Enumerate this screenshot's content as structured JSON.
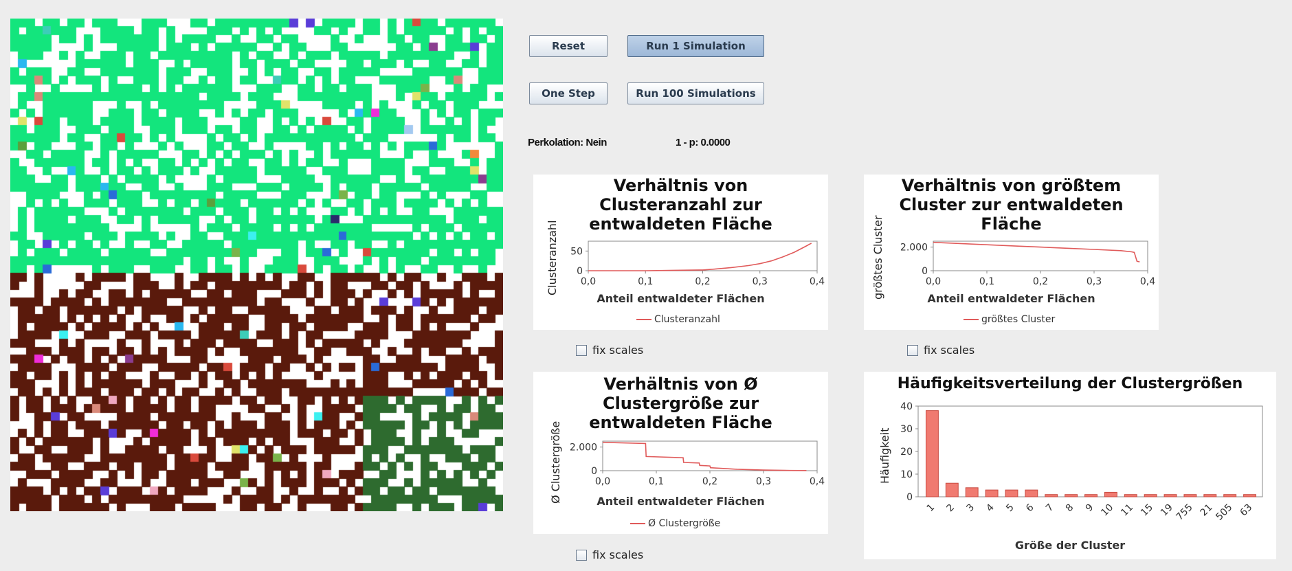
{
  "controls": {
    "reset_label": "Reset",
    "run1_label": "Run 1 Simulation",
    "onestep_label": "One Step",
    "run100_label": "Run 100 Simulations"
  },
  "status": {
    "percolation": "Perkolation: Nein",
    "one_minus_p": "1 - p: 0.0000"
  },
  "checkbox_label": "fix scales",
  "colors": {
    "forest_green": "#13e57d",
    "burnt_brown": "#5a1a0c",
    "dark_green": "#2e6b2f",
    "series_red": "#e05a5a",
    "bar_fill": "#f07a70",
    "button_pressed": "#a9c2e0"
  },
  "chart_data": [
    {
      "type": "line",
      "title": [
        "Verhältnis von",
        "Clusteranzahl zur",
        "entwaldeten Fläche"
      ],
      "xlabel": "Anteil entwaldeter Flächen",
      "ylabel": "Clusteranzahl",
      "xlim": [
        0,
        0.4
      ],
      "ylim": [
        0,
        75
      ],
      "xticks": [
        "0,0",
        "0,1",
        "0,2",
        "0,3",
        "0,4"
      ],
      "yticks": [
        "0",
        "50"
      ],
      "ytick_values": [
        0,
        50
      ],
      "series": [
        {
          "name": "Clusteranzahl",
          "x": [
            0.0,
            0.05,
            0.1,
            0.15,
            0.2,
            0.22,
            0.25,
            0.28,
            0.3,
            0.32,
            0.34,
            0.36,
            0.38,
            0.39
          ],
          "y": [
            0,
            0,
            0,
            1,
            2,
            4,
            8,
            13,
            18,
            25,
            35,
            47,
            62,
            70
          ]
        }
      ]
    },
    {
      "type": "line",
      "title": [
        "Verhältnis von größtem",
        "Cluster zur entwaldeten",
        "Fläche"
      ],
      "xlabel": "Anteil entwaldeter Flächen",
      "ylabel": "größtes Cluster",
      "xlim": [
        0,
        0.4
      ],
      "ylim": [
        0,
        2500
      ],
      "xticks": [
        "0,0",
        "0,1",
        "0,2",
        "0,3",
        "0,4"
      ],
      "yticks": [
        "0",
        "2.000"
      ],
      "ytick_values": [
        0,
        2000
      ],
      "series": [
        {
          "name": "größtes Cluster",
          "x": [
            0.0,
            0.05,
            0.1,
            0.15,
            0.2,
            0.25,
            0.3,
            0.35,
            0.37,
            0.375,
            0.38,
            0.385
          ],
          "y": [
            2400,
            2300,
            2200,
            2100,
            2000,
            1900,
            1800,
            1700,
            1600,
            1550,
            800,
            750
          ]
        }
      ]
    },
    {
      "type": "line",
      "title": [
        "Verhältnis von Ø",
        "Clustergröße zur",
        "entwaldeten Fläche"
      ],
      "xlabel": "Anteil entwaldeter Flächen",
      "ylabel": "Ø Clustergröße",
      "xlim": [
        0,
        0.4
      ],
      "ylim": [
        0,
        2500
      ],
      "xticks": [
        "0,0",
        "0,1",
        "0,2",
        "0,3",
        "0,4"
      ],
      "yticks": [
        "0",
        "2.000"
      ],
      "ytick_values": [
        0,
        2000
      ],
      "series": [
        {
          "name": "Ø Clustergröße",
          "x": [
            0.0,
            0.08,
            0.081,
            0.15,
            0.151,
            0.18,
            0.181,
            0.2,
            0.201,
            0.25,
            0.3,
            0.35,
            0.38
          ],
          "y": [
            2400,
            2300,
            1200,
            1100,
            700,
            650,
            450,
            400,
            250,
            120,
            50,
            20,
            10
          ]
        }
      ]
    },
    {
      "type": "bar",
      "title": "Häufigkeitsverteilung der Clustergrößen",
      "xlabel": "Größe der Cluster",
      "ylabel": "Häufigkeit",
      "ylim": [
        0,
        40
      ],
      "yticks": [
        "0",
        "10",
        "20",
        "30",
        "40"
      ],
      "ytick_values": [
        0,
        10,
        20,
        30,
        40
      ],
      "categories": [
        "1",
        "2",
        "3",
        "4",
        "5",
        "6",
        "7",
        "8",
        "9",
        "10",
        "11",
        "15",
        "19",
        "755",
        "21",
        "505",
        "63"
      ],
      "values": [
        38,
        6,
        4,
        3,
        3,
        3,
        1,
        1,
        1,
        2,
        1,
        1,
        1,
        1,
        1,
        1,
        1
      ]
    }
  ]
}
